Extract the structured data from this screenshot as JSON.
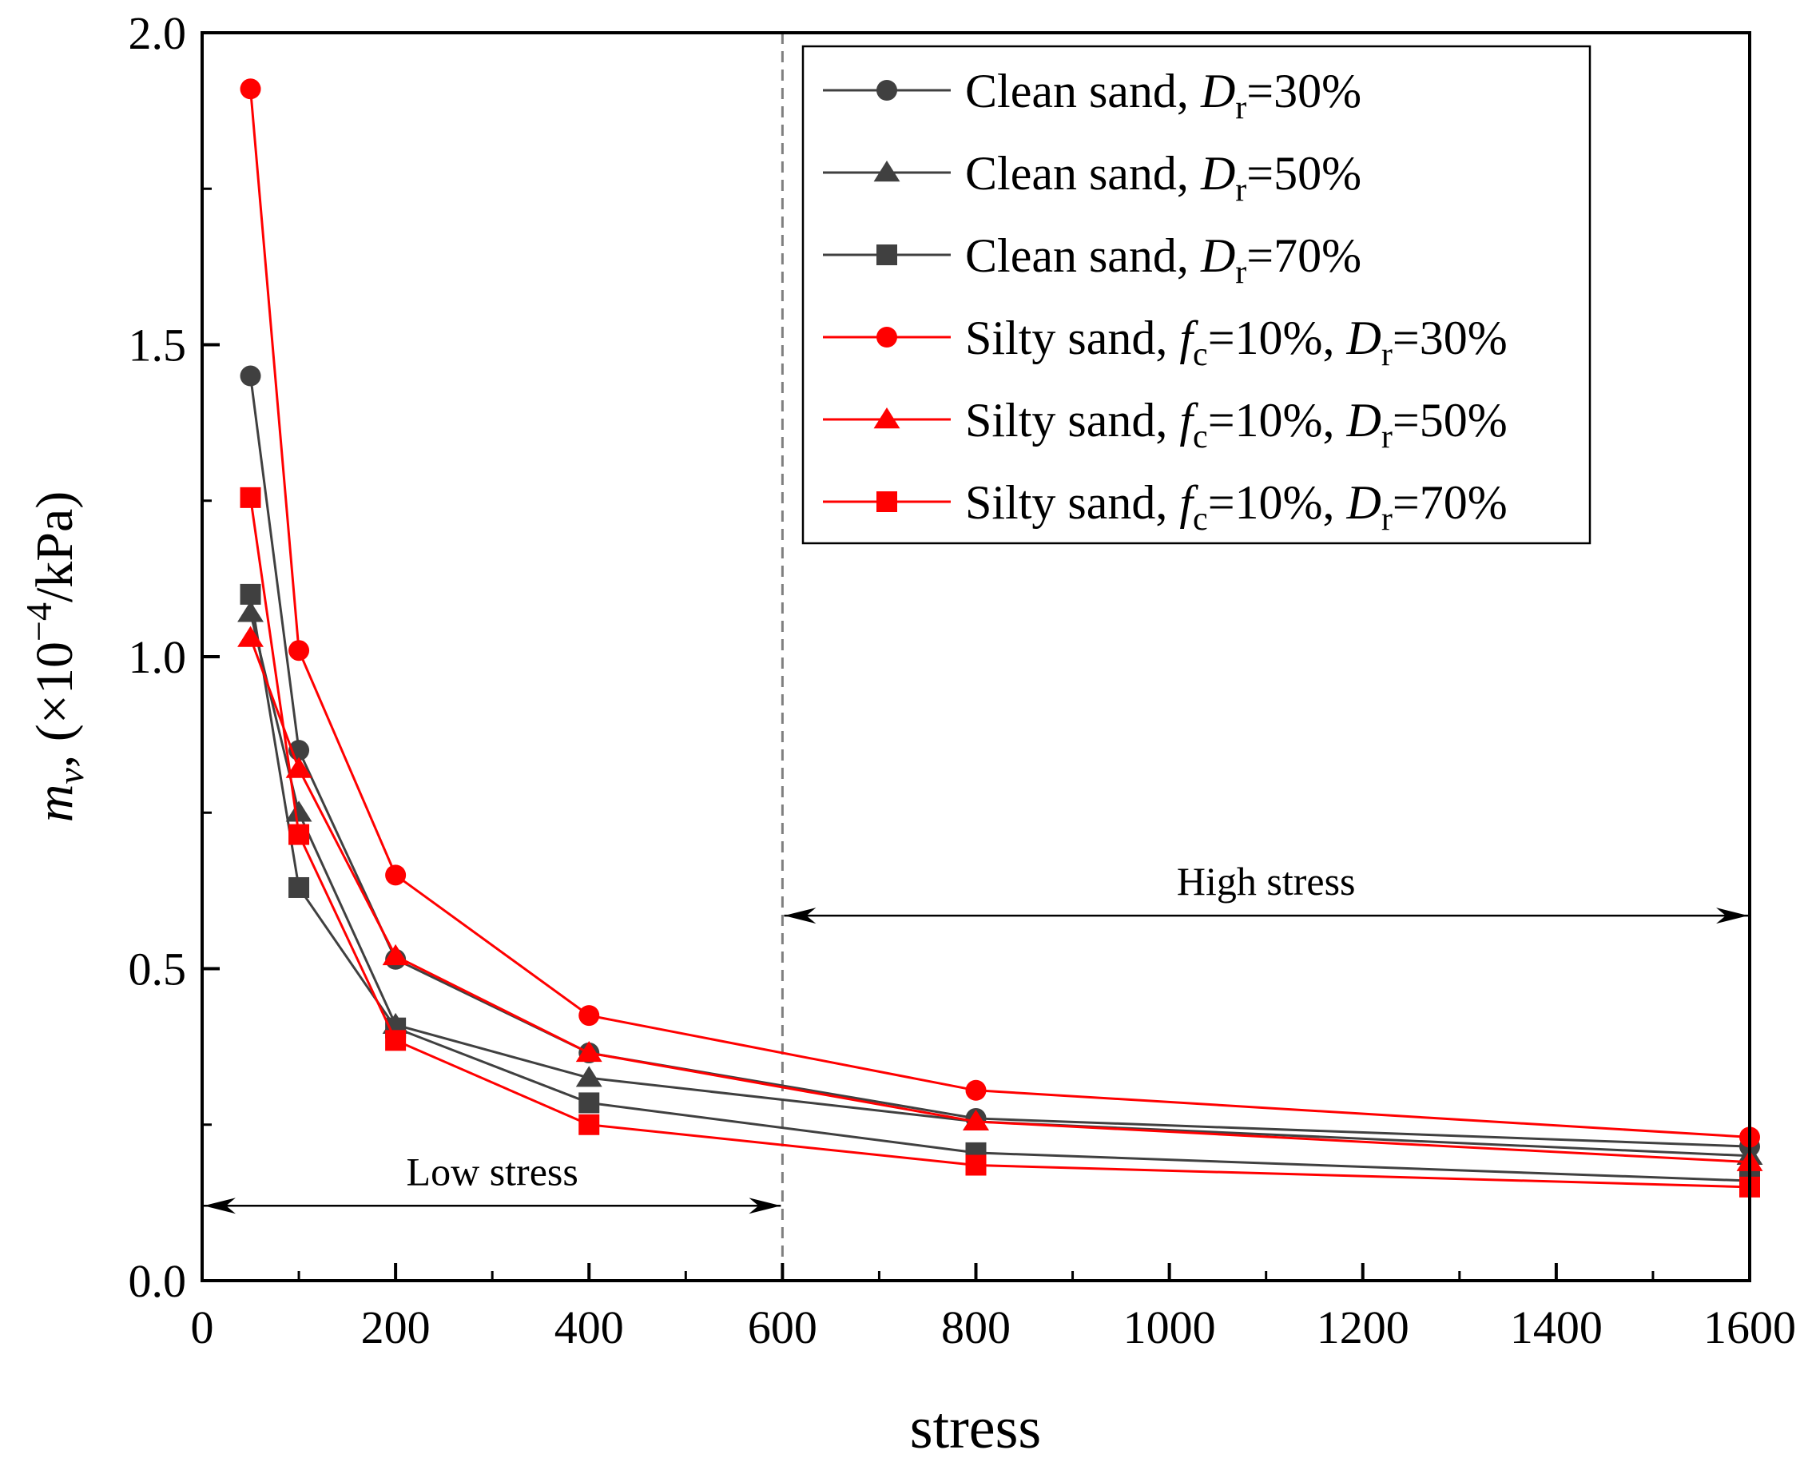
{
  "chart_data": {
    "type": "line",
    "xlabel": "stress",
    "ylabel": {
      "main": "m",
      "sub": "v",
      "unit_prefix": ", (×10",
      "exp": "−4",
      "unit_suffix": "/kPa)"
    },
    "xlim": [
      0,
      1600
    ],
    "ylim": [
      0,
      2.0
    ],
    "x_ticks": [
      0,
      200,
      400,
      600,
      800,
      1000,
      1200,
      1400,
      1600
    ],
    "x_tick_labels": [
      "0",
      "200",
      "400",
      "600",
      "800",
      "1000",
      "1200",
      "1400",
      "1600"
    ],
    "y_ticks": [
      0,
      0.5,
      1.0,
      1.5,
      2.0
    ],
    "y_tick_labels": [
      "0.0",
      "0.5",
      "1.0",
      "1.5",
      "2.0"
    ],
    "grid": false,
    "legend_position": "top-right",
    "x": [
      50,
      100,
      200,
      400,
      800,
      1600
    ],
    "series": [
      {
        "name": "Clean sand, Dr=30%",
        "legend": {
          "prefix": "Clean sand, ",
          "parts": [
            {
              "var": "D",
              "sub": "r",
              "val": "=30%"
            }
          ]
        },
        "color": "#404040",
        "marker": "circle",
        "values": [
          1.45,
          0.85,
          0.515,
          0.365,
          0.26,
          0.215
        ]
      },
      {
        "name": "Clean sand, Dr=50%",
        "legend": {
          "prefix": "Clean sand, ",
          "parts": [
            {
              "var": "D",
              "sub": "r",
              "val": "=50%"
            }
          ]
        },
        "color": "#404040",
        "marker": "triangle",
        "values": [
          1.07,
          0.75,
          0.41,
          0.325,
          0.255,
          0.2
        ]
      },
      {
        "name": "Clean sand, Dr=70%",
        "legend": {
          "prefix": "Clean sand, ",
          "parts": [
            {
              "var": "D",
              "sub": "r",
              "val": "=70%"
            }
          ]
        },
        "color": "#404040",
        "marker": "square",
        "values": [
          1.1,
          0.63,
          0.405,
          0.285,
          0.205,
          0.16
        ]
      },
      {
        "name": "Silty sand, fc=10%, Dr=30%",
        "legend": {
          "prefix": "Silty sand, ",
          "parts": [
            {
              "var": "f",
              "sub": "c",
              "val": "=10%, "
            },
            {
              "var": "D",
              "sub": "r",
              "val": "=30%"
            }
          ]
        },
        "color": "#ff0000",
        "marker": "circle",
        "values": [
          1.91,
          1.01,
          0.65,
          0.425,
          0.305,
          0.23
        ]
      },
      {
        "name": "Silty sand, fc=10%, Dr=50%",
        "legend": {
          "prefix": "Silty sand, ",
          "parts": [
            {
              "var": "f",
              "sub": "c",
              "val": "=10%, "
            },
            {
              "var": "D",
              "sub": "r",
              "val": "=50%"
            }
          ]
        },
        "color": "#ff0000",
        "marker": "triangle",
        "values": [
          1.03,
          0.82,
          0.52,
          0.365,
          0.255,
          0.19
        ]
      },
      {
        "name": "Silty sand, fc=10%, Dr=70%",
        "legend": {
          "prefix": "Silty sand, ",
          "parts": [
            {
              "var": "f",
              "sub": "c",
              "val": "=10%, "
            },
            {
              "var": "D",
              "sub": "r",
              "val": "=70%"
            }
          ]
        },
        "color": "#ff0000",
        "marker": "square",
        "values": [
          1.255,
          0.715,
          0.385,
          0.25,
          0.185,
          0.15
        ]
      }
    ],
    "annotations": [
      {
        "text": "Low stress",
        "x_range": [
          0,
          600
        ],
        "y": 0.12
      },
      {
        "text": "High stress",
        "x_range": [
          600,
          1600
        ],
        "y": 0.585
      }
    ],
    "divider_x": 600
  }
}
